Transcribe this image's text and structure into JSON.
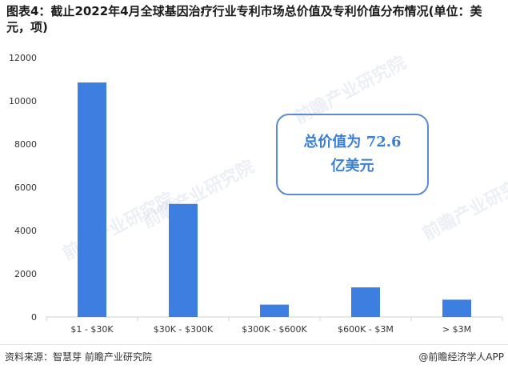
{
  "title": "图表4：截止2022年4月全球基因治疗行业专利市场总价值及专利价值分布情况(单位：美元，项)",
  "callout": {
    "line1": "总价值为 72.6",
    "line2": "亿美元"
  },
  "footer": {
    "source": "资料来源：智慧芽 前瞻产业研究院",
    "app": "@前瞻经济学人APP"
  },
  "watermark": "前瞻产业研究院",
  "colors": {
    "bar": "#3d7fe0",
    "axis": "#d0d0d0",
    "callout": "#5b8bd3"
  },
  "chart_data": {
    "type": "bar",
    "categories": [
      "$1 - $30K",
      "$30K - $300K",
      "$300K - $600K",
      "$600K - $3M",
      "> $3M"
    ],
    "values": [
      10850,
      5230,
      570,
      1370,
      800
    ],
    "yticks": [
      0,
      2000,
      4000,
      6000,
      8000,
      10000,
      12000
    ],
    "ylim": [
      0,
      12000
    ],
    "grid": false
  }
}
